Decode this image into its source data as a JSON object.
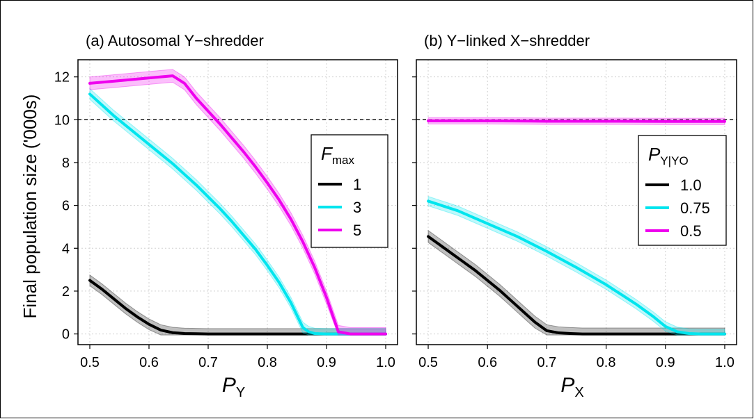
{
  "shared": {
    "ylabel": "Final population size ('000s)",
    "ylim": [
      -0.5,
      12.8
    ],
    "yticks": [
      0,
      2,
      4,
      6,
      8,
      10,
      12
    ],
    "xlim": [
      0.48,
      1.02
    ],
    "xticks": [
      0.5,
      0.6,
      0.7,
      0.8,
      0.9,
      1.0
    ],
    "xtick_labels": [
      "0.5",
      "0.6",
      "0.7",
      "0.8",
      "0.9",
      "1.0"
    ],
    "reference_line_y": 10,
    "grid": true
  },
  "colors": {
    "black": "#000000",
    "cyan": "#00e5ee",
    "magenta": "#ee00ee",
    "grid": "#d0d0d0"
  },
  "chart_data": [
    {
      "type": "line",
      "title": "(a) Autosomal Y−shredder",
      "xlabel_main": "P",
      "xlabel_sub": "Y",
      "legend": {
        "title_main": "F",
        "title_sub": "max",
        "position": "right-middle"
      },
      "series": [
        {
          "name": "1",
          "color": "black",
          "x": [
            0.5,
            0.52,
            0.54,
            0.56,
            0.58,
            0.6,
            0.62,
            0.64,
            0.66,
            0.68,
            0.7,
            0.75,
            0.8,
            0.85,
            0.9,
            0.95,
            1.0
          ],
          "y": [
            2.5,
            2.1,
            1.65,
            1.2,
            0.8,
            0.45,
            0.18,
            0.06,
            0.02,
            0.01,
            0,
            0,
            0,
            0,
            0,
            0,
            0
          ],
          "band": 0.25
        },
        {
          "name": "3",
          "color": "cyan",
          "x": [
            0.5,
            0.52,
            0.54,
            0.56,
            0.58,
            0.6,
            0.62,
            0.64,
            0.66,
            0.68,
            0.7,
            0.72,
            0.74,
            0.76,
            0.78,
            0.8,
            0.82,
            0.84,
            0.86,
            0.87,
            0.88,
            0.9,
            0.95,
            1.0
          ],
          "y": [
            11.2,
            10.7,
            10.2,
            9.75,
            9.3,
            8.85,
            8.4,
            7.95,
            7.45,
            6.95,
            6.4,
            5.85,
            5.25,
            4.6,
            3.95,
            3.2,
            2.4,
            1.45,
            0.3,
            0.1,
            0.02,
            0,
            0,
            0
          ],
          "band": 0.25
        },
        {
          "name": "5",
          "color": "magenta",
          "x": [
            0.5,
            0.54,
            0.58,
            0.62,
            0.64,
            0.66,
            0.68,
            0.7,
            0.72,
            0.74,
            0.76,
            0.78,
            0.8,
            0.82,
            0.84,
            0.86,
            0.88,
            0.9,
            0.92,
            0.94,
            0.96,
            1.0
          ],
          "y": [
            11.7,
            11.8,
            11.9,
            12.0,
            12.05,
            11.7,
            11.0,
            10.4,
            9.8,
            9.15,
            8.5,
            7.8,
            7.05,
            6.25,
            5.35,
            4.3,
            3.1,
            1.7,
            0.1,
            0,
            0,
            0
          ],
          "band": 0.3
        }
      ]
    },
    {
      "type": "line",
      "title": "(b) Y−linked X−shredder",
      "xlabel_main": "P",
      "xlabel_sub": "X",
      "legend": {
        "title_main": "P",
        "title_sub": "Y|YO",
        "position": "right-middle"
      },
      "series": [
        {
          "name": "1.0",
          "color": "black",
          "x": [
            0.5,
            0.52,
            0.54,
            0.56,
            0.58,
            0.6,
            0.62,
            0.64,
            0.66,
            0.68,
            0.7,
            0.72,
            0.74,
            0.76,
            0.78,
            0.8,
            0.85,
            0.9,
            0.95,
            1.0
          ],
          "y": [
            4.55,
            4.15,
            3.75,
            3.35,
            2.95,
            2.5,
            2.05,
            1.55,
            1.05,
            0.55,
            0.15,
            0.05,
            0.02,
            0,
            0,
            0,
            0,
            0,
            0,
            0
          ],
          "band": 0.28
        },
        {
          "name": "0.75",
          "color": "cyan",
          "x": [
            0.5,
            0.55,
            0.6,
            0.65,
            0.7,
            0.75,
            0.8,
            0.85,
            0.88,
            0.9,
            0.92,
            0.94,
            0.96,
            1.0
          ],
          "y": [
            6.2,
            5.75,
            5.15,
            4.55,
            3.85,
            3.1,
            2.3,
            1.4,
            0.8,
            0.35,
            0.1,
            0.02,
            0,
            0
          ],
          "band": 0.22
        },
        {
          "name": "0.5",
          "color": "magenta",
          "x": [
            0.5,
            0.6,
            0.7,
            0.8,
            0.9,
            1.0
          ],
          "y": [
            9.95,
            9.95,
            9.93,
            9.93,
            9.92,
            9.92
          ],
          "band": 0.15
        }
      ]
    }
  ]
}
